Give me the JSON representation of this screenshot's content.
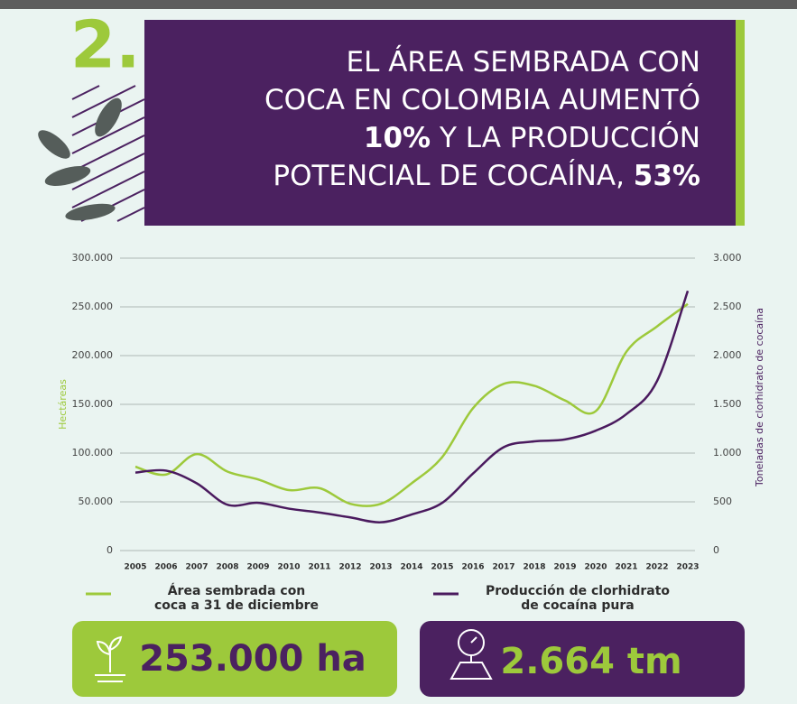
{
  "header": {
    "number": "2.",
    "title_lines": [
      [
        {
          "text": "EL ÁREA SEMBRADA CON"
        }
      ],
      [
        {
          "text": "COCA EN COLOMBIA AUMENTÓ"
        }
      ],
      [
        {
          "text": "10%",
          "bold": true
        },
        {
          "text": " Y LA PRODUCCIÓN"
        }
      ],
      [
        {
          "text": "POTENCIAL DE COCAÍNA, "
        },
        {
          "text": "53%",
          "bold": true
        }
      ]
    ]
  },
  "chart_data": {
    "type": "line",
    "categories": [
      "2005",
      "2006",
      "2007",
      "2008",
      "2009",
      "2010",
      "2011",
      "2012",
      "2013",
      "2014",
      "2015",
      "2016",
      "2017",
      "2018",
      "2019",
      "2020",
      "2021",
      "2022",
      "2023"
    ],
    "y_label": "Hectáreas",
    "y2_label": "Toneladas de clorhidrato de cocaína",
    "ylim": [
      0,
      300000
    ],
    "yticks": [
      0,
      {
        "value": 50000,
        "label": "50.000"
      },
      {
        "value": 100000,
        "label": "100.000"
      },
      {
        "value": 150000,
        "label": "150.000"
      },
      {
        "value": 200000,
        "label": "200.000"
      },
      {
        "value": 250000,
        "label": "250.000"
      },
      {
        "value": 300000,
        "label": "300.000"
      }
    ],
    "y2lim": [
      0,
      3000
    ],
    "y2ticks": [
      0,
      500,
      {
        "value": 1000,
        "label": "1.000"
      },
      {
        "value": 1500,
        "label": "1.500"
      },
      {
        "value": 2000,
        "label": "2.000"
      },
      {
        "value": 2500,
        "label": "2.500"
      },
      {
        "value": 3000,
        "label": "3.000"
      }
    ],
    "grid": true,
    "series": [
      {
        "name": "Área sembrada con coca a 31 de diciembre",
        "color": "#9dc93b",
        "values": [
          86000,
          78000,
          99000,
          81000,
          73000,
          62000,
          64000,
          48000,
          48000,
          69000,
          96000,
          146000,
          171000,
          169000,
          154000,
          143000,
          204000,
          230000,
          253000
        ]
      },
      {
        "name": "Producción de clorhidrato de cocaína pura",
        "color": "#4a1a5e",
        "axis": "y2",
        "values": [
          800,
          820,
          690,
          470,
          490,
          430,
          390,
          340,
          290,
          370,
          490,
          790,
          1060,
          1120,
          1140,
          1230,
          1400,
          1740,
          2664
        ]
      }
    ]
  },
  "highlights": [
    {
      "text": "253.000 ha"
    },
    {
      "text": "2.664 tm"
    }
  ]
}
